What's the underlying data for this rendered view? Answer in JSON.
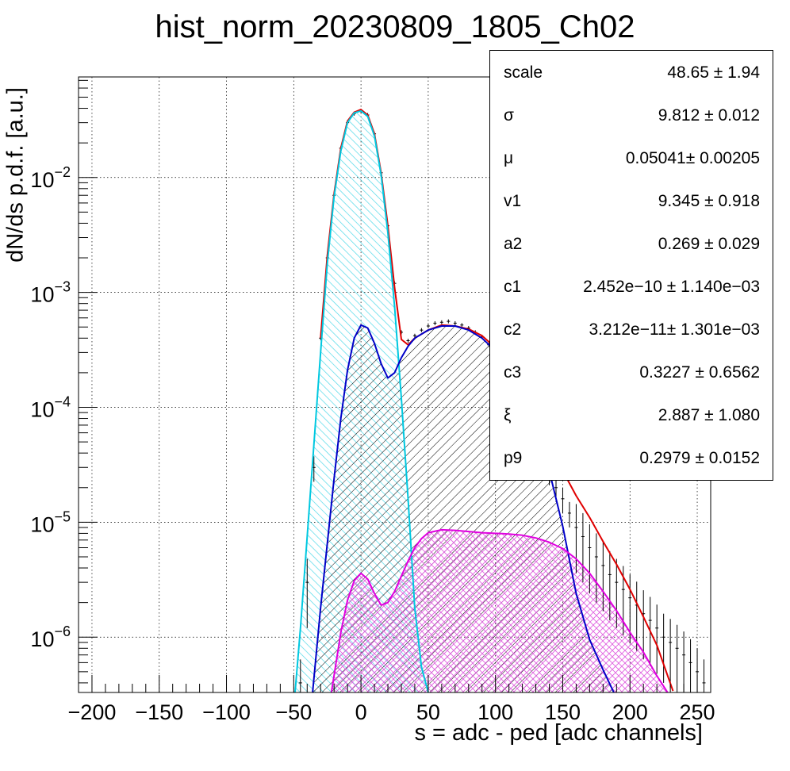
{
  "chart_data": {
    "type": "line",
    "title": "hist_norm_20230809_1805_Ch02",
    "xlabel": "s = adc - ped [adc channels]",
    "ylabel": "dN/ds p.d.f. [a.u.]",
    "xlim": [
      -210,
      260
    ],
    "ylim": [
      3.3e-07,
      0.075
    ],
    "yscale": "log",
    "grid": true,
    "x_ticks": [
      "−200",
      "−150",
      "−100",
      "−50",
      "0",
      "50",
      "100",
      "150",
      "200",
      "250"
    ],
    "x_tick_values": [
      -200,
      -150,
      -100,
      -50,
      0,
      50,
      100,
      150,
      200,
      250
    ],
    "y_ticks": [
      {
        "base": "10",
        "exp": "−2",
        "value": 0.01
      },
      {
        "base": "10",
        "exp": "−3",
        "value": 0.001
      },
      {
        "base": "10",
        "exp": "−4",
        "value": 0.0001
      },
      {
        "base": "10",
        "exp": "−5",
        "value": 1e-05
      },
      {
        "base": "10",
        "exp": "−6",
        "value": 1e-06
      }
    ],
    "series": [
      {
        "color": "#000000",
        "style": "histogram-points",
        "x": [
          -45,
          -40,
          -35,
          -30,
          -25,
          -20,
          -15,
          -10,
          -5,
          0,
          5,
          10,
          15,
          20,
          25,
          30,
          35,
          40,
          45,
          50,
          55,
          60,
          65,
          70,
          75,
          80,
          85,
          90,
          95,
          100,
          105,
          110,
          115,
          120,
          125,
          130,
          135,
          140,
          145,
          150,
          155,
          160,
          165,
          170,
          175,
          180,
          185,
          190,
          195,
          200,
          205,
          210,
          215,
          220,
          225,
          230,
          235,
          240,
          245,
          250,
          255
        ],
        "y": [
          4e-07,
          3e-06,
          3e-05,
          0.0004,
          0.002,
          0.007,
          0.018,
          0.03,
          0.036,
          0.038,
          0.035,
          0.024,
          0.011,
          0.0038,
          0.0012,
          0.00045,
          0.00038,
          0.00042,
          0.00047,
          0.00051,
          0.00054,
          0.00055,
          0.00056,
          0.00054,
          0.00052,
          0.00049,
          0.00045,
          0.00041,
          0.00035,
          0.00029,
          0.00023,
          0.00018,
          0.00014,
          0.0001,
          7e-05,
          5.2e-05,
          3.8e-05,
          2.8e-05,
          2e-05,
          1.6e-05,
          1.2e-05,
          9e-06,
          7.5e-06,
          6e-06,
          5e-06,
          4.2e-06,
          3.5e-06,
          3e-06,
          2.6e-06,
          2.2e-06,
          1.9e-06,
          1.6e-06,
          1.4e-06,
          1.2e-06,
          1e-06,
          9e-07,
          8e-07,
          7e-07,
          6e-07,
          5e-07,
          4e-07
        ]
      },
      {
        "color": "#e00000",
        "style": "line",
        "x": [
          -30,
          -25,
          -20,
          -15,
          -10,
          -5,
          0,
          5,
          10,
          15,
          20,
          25,
          30,
          35,
          40,
          50,
          60,
          70,
          80,
          90,
          100,
          110,
          120,
          130,
          140,
          150,
          160,
          170,
          180,
          190,
          200,
          210,
          220,
          232
        ],
        "y": [
          0.0004,
          0.0021,
          0.0072,
          0.018,
          0.031,
          0.037,
          0.039,
          0.035,
          0.024,
          0.011,
          0.0038,
          0.0011,
          0.00039,
          0.00035,
          0.0004,
          0.00047,
          0.00052,
          0.00051,
          0.00048,
          0.00042,
          0.00033,
          0.00023,
          0.00014,
          8.3e-05,
          4.8e-05,
          2.8e-05,
          1.7e-05,
          1.1e-05,
          6.8e-06,
          4.3e-06,
          2.6e-06,
          1.5e-06,
          8.5e-07,
          3.4e-07
        ]
      },
      {
        "color": "#00c8e0",
        "style": "line-filled",
        "fill": "cyan-hatch",
        "x": [
          -49,
          -45,
          -40,
          -35,
          -30,
          -25,
          -20,
          -15,
          -10,
          -5,
          0,
          5,
          10,
          15,
          20,
          25,
          30,
          35,
          40,
          45,
          50
        ],
        "y": [
          3.3e-07,
          1.2e-06,
          7.5e-06,
          4.8e-05,
          0.0003,
          0.0018,
          0.0068,
          0.017,
          0.03,
          0.0365,
          0.038,
          0.034,
          0.023,
          0.0105,
          0.0033,
          0.00075,
          0.00012,
          1.6e-05,
          1.8e-06,
          5.5e-07,
          3.3e-07
        ]
      },
      {
        "color": "#0000c8",
        "style": "line-filled",
        "fill": "black-hatch",
        "x": [
          -36,
          -30,
          -20,
          -15,
          -10,
          -5,
          0,
          5,
          10,
          15,
          20,
          25,
          30,
          35,
          40,
          50,
          60,
          70,
          80,
          90,
          100,
          110,
          120,
          130,
          140,
          150,
          160,
          170,
          180,
          188
        ],
        "y": [
          3.3e-07,
          1.8e-06,
          2.4e-05,
          8e-05,
          0.00021,
          0.0004,
          0.00052,
          0.00049,
          0.00036,
          0.00024,
          0.00018,
          0.0002,
          0.00027,
          0.00034,
          0.0004,
          0.00047,
          0.00051,
          0.00051,
          0.00047,
          0.0004,
          0.00031,
          0.00021,
          0.00013,
          6.6e-05,
          2.8e-05,
          9.2e-06,
          2.4e-06,
          9.5e-07,
          5.2e-07,
          3.3e-07
        ]
      },
      {
        "color": "#e000e0",
        "style": "line-filled",
        "fill": "magenta-crosshatch",
        "x": [
          -22,
          -15,
          -10,
          -5,
          0,
          5,
          10,
          15,
          20,
          25,
          30,
          35,
          40,
          45,
          50,
          60,
          70,
          80,
          90,
          100,
          110,
          120,
          130,
          140,
          150,
          160,
          170,
          180,
          190,
          200,
          210,
          220,
          228
        ],
        "y": [
          3.3e-07,
          1.1e-06,
          2.1e-06,
          3.1e-06,
          3.6e-06,
          3.2e-06,
          2.4e-06,
          1.9e-06,
          2e-06,
          2.5e-06,
          3.4e-06,
          4.6e-06,
          6e-06,
          7.2e-06,
          8.1e-06,
          8.6e-06,
          8.5e-06,
          8.3e-06,
          8.1e-06,
          8e-06,
          7.9e-06,
          7.7e-06,
          7.3e-06,
          6.7e-06,
          5.9e-06,
          4.8e-06,
          3.6e-06,
          2.5e-06,
          1.7e-06,
          1.1e-06,
          7.4e-07,
          4.6e-07,
          3.3e-07
        ]
      }
    ]
  },
  "stats": [
    {
      "name": "scale",
      "value": "48.65 ± 1.94"
    },
    {
      "name": "σ",
      "value": "9.812 ± 0.012"
    },
    {
      "name": "μ",
      "value": "0.05041± 0.00205"
    },
    {
      "name": "v1",
      "value": "9.345 ± 0.918"
    },
    {
      "name": "a2",
      "value": "0.269 ± 0.029"
    },
    {
      "name": "c1",
      "value": "2.452e−10 ± 1.140e−03"
    },
    {
      "name": "c2",
      "value": "3.212e−11± 1.301e−03"
    },
    {
      "name": "c3",
      "value": "0.3227 ± 0.6562"
    },
    {
      "name": "ξ",
      "value": "2.887 ± 1.080"
    },
    {
      "name": "p9",
      "value": "0.2979 ± 0.0152"
    }
  ]
}
